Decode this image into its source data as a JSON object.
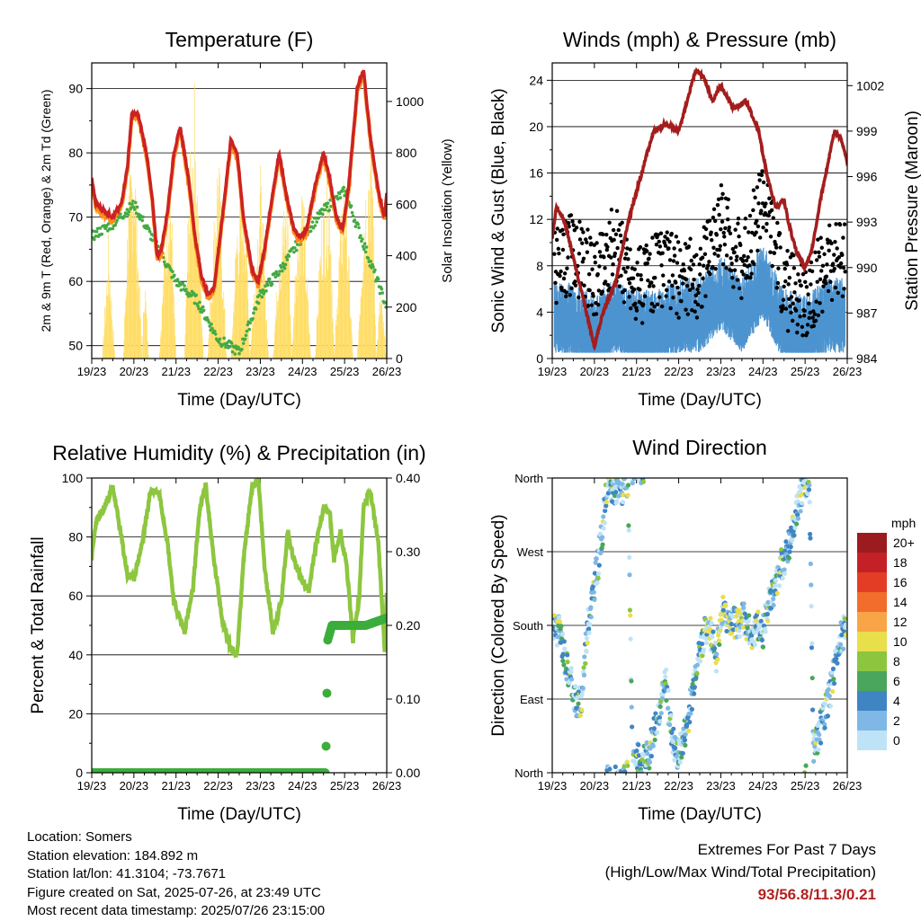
{
  "panels": {
    "temperature": {
      "title": "Temperature (F)",
      "xlabel": "Time (Day/UTC)",
      "ylabel_left": "2m & 9m T (Red, Orange) & 2m Td (Green)",
      "ylabel_right": "Solar Insolation (Yellow)"
    },
    "winds": {
      "title": "Winds (mph) & Pressure (mb)",
      "xlabel": "Time (Day/UTC)",
      "ylabel_left": "Sonic Wind & Gust (Blue, Black)",
      "ylabel_right": "Station Pressure (Maroon)"
    },
    "humidity": {
      "title": "Relative Humidity (%) & Precipitation (in)",
      "xlabel": "Time (Day/UTC)",
      "ylabel_left": "Percent & Total Rainfall"
    },
    "direction": {
      "title": "Wind Direction",
      "xlabel": "Time (Day/UTC)",
      "ylabel_left": "Direction (Colored By Speed)",
      "legend_title": "mph"
    }
  },
  "info": {
    "location": "Location: Somers",
    "elevation": "Station elevation: 184.892 m",
    "latlon": "Station lat/lon: 41.3104; -73.7671",
    "created": "Figure created on Sat, 2025-07-26, at 23:49 UTC",
    "recent": "Most recent data timestamp: 2025/07/26 23:15:00"
  },
  "extremes": {
    "line1": "Extremes For Past 7 Days",
    "line2": "(High/Low/Max Wind/Total Precipitation)",
    "values": "93/56.8/11.3/0.21"
  },
  "chart_data": [
    {
      "type": "line",
      "title": "Temperature (F)",
      "xlabel": "Time (Day/UTC)",
      "ylabel": "2m & 9m T (Red, Orange) & 2m Td (Green)",
      "y2label": "Solar Insolation (Yellow)",
      "x_ticks": [
        "19/23",
        "20/23",
        "21/23",
        "22/23",
        "23/23",
        "24/23",
        "25/23",
        "26/23"
      ],
      "x_range": [
        0,
        7
      ],
      "y_ticks": [
        "50",
        "60",
        "70",
        "80",
        "90"
      ],
      "ylim": [
        48,
        94
      ],
      "y2_ticks": [
        "0",
        "200",
        "400",
        "600",
        "800",
        "1000"
      ],
      "y2lim": [
        0,
        1150
      ],
      "colors": {
        "t2m": "#cc2222",
        "t9m": "#ff8c1a",
        "td": "#44aa44",
        "solar": "#ffdd66"
      },
      "series": [
        {
          "x": [
            0,
            0.1,
            0.3,
            0.5,
            0.7,
            0.85,
            0.95,
            1.1,
            1.3,
            1.45,
            1.55,
            1.65,
            1.8,
            1.95,
            2.1,
            2.3,
            2.45,
            2.6,
            2.75,
            2.9,
            3.1,
            3.3,
            3.45,
            3.6,
            3.8,
            3.95,
            4.1,
            4.3,
            4.45,
            4.6,
            4.8,
            4.95,
            5.1,
            5.3,
            5.5,
            5.65,
            5.8,
            5.95,
            6.1,
            6.3,
            6.45,
            6.6,
            6.8,
            6.95,
            7
          ],
          "values": [
            76,
            72,
            71,
            70,
            72,
            78,
            86,
            86,
            80,
            72,
            64,
            65,
            71,
            80,
            84,
            76,
            67,
            61,
            58,
            59,
            70,
            82,
            80,
            70,
            62,
            60,
            65,
            74,
            80,
            74,
            68,
            67,
            68,
            75,
            80,
            76,
            70,
            68,
            75,
            90,
            93,
            83,
            74,
            70,
            74
          ]
        },
        {
          "x": [
            0,
            0.5,
            1,
            1.5,
            2,
            2.5,
            3,
            3.5,
            4,
            4.5,
            5,
            5.5,
            6,
            6.5,
            7
          ],
          "values": [
            67,
            69,
            72,
            66,
            60,
            57,
            51,
            49,
            58,
            62,
            67,
            71,
            74,
            65,
            56
          ]
        },
        {
          "x": [
            0,
            0.25,
            0.4,
            0.55,
            0.75,
            0.85,
            1.0,
            1.2,
            1.25,
            1.35,
            1.6,
            1.75,
            1.85,
            2.0,
            2.2,
            2.3,
            2.45,
            2.65,
            2.75,
            2.85,
            3.0,
            3.2,
            3.3,
            3.45,
            3.65,
            3.75,
            3.85,
            4.0,
            4.2,
            4.3,
            4.45,
            4.65,
            4.75,
            4.85,
            5.0,
            5.2,
            5.3,
            5.45,
            5.65,
            5.75,
            5.85,
            6.0,
            6.2,
            6.3,
            6.45,
            6.65,
            6.75,
            6.85,
            7.0
          ],
          "values": [
            0,
            0,
            500,
            0,
            0,
            600,
            950,
            0,
            400,
            0,
            0,
            550,
            900,
            0,
            0,
            700,
            1100,
            0,
            0,
            400,
            900,
            0,
            0,
            600,
            700,
            0,
            300,
            800,
            0,
            0,
            500,
            700,
            0,
            500,
            750,
            0,
            0,
            600,
            800,
            0,
            400,
            850,
            0,
            0,
            650,
            1000,
            0,
            300,
            0
          ]
        }
      ]
    },
    {
      "type": "line",
      "title": "Winds (mph) & Pressure (mb)",
      "xlabel": "Time (Day/UTC)",
      "ylabel": "Sonic Wind & Gust (Blue, Black)",
      "y2label": "Station Pressure (Maroon)",
      "x_ticks": [
        "19/23",
        "20/23",
        "21/23",
        "22/23",
        "23/23",
        "24/23",
        "25/23",
        "26/23"
      ],
      "x_range": [
        0,
        7
      ],
      "y_ticks": [
        "0",
        "4",
        "8",
        "12",
        "16",
        "20",
        "24"
      ],
      "ylim": [
        0,
        25.5
      ],
      "y2_ticks": [
        "984",
        "987",
        "990",
        "993",
        "996",
        "999",
        "1002"
      ],
      "y2lim": [
        984,
        1003.5
      ],
      "colors": {
        "gust": "#000000",
        "wind": "#4d94d0",
        "pressure": "#a31d1d"
      },
      "series": [
        {
          "x": [
            0,
            0.5,
            1,
            1.5,
            2,
            2.5,
            3,
            3.5,
            4,
            4.5,
            5,
            5.5,
            6,
            6.5,
            7
          ],
          "values": [
            8,
            9,
            7,
            10,
            6,
            8,
            7,
            7,
            12,
            8,
            14,
            6,
            5,
            8,
            9
          ]
        },
        {
          "x": [
            0,
            0.5,
            1,
            1.5,
            2,
            2.5,
            3,
            3.5,
            4,
            4.5,
            5,
            5.5,
            6,
            6.5,
            7
          ],
          "values": [
            4,
            3.5,
            2.5,
            4,
            3,
            3,
            4,
            4,
            6,
            4,
            7,
            3,
            2.5,
            4,
            4
          ]
        },
        {
          "x": [
            0,
            0.1,
            0.3,
            0.6,
            0.9,
            1.0,
            1.2,
            1.5,
            1.8,
            2.1,
            2.4,
            2.7,
            3.0,
            3.2,
            3.4,
            3.6,
            3.8,
            4.0,
            4.3,
            4.6,
            4.9,
            5.1,
            5.3,
            5.5,
            5.6,
            5.8,
            6.0,
            6.15,
            6.4,
            6.7,
            6.85,
            7
          ],
          "values": [
            992,
            994,
            993,
            989.5,
            986,
            984.8,
            987,
            989,
            993,
            996,
            999,
            999.5,
            999,
            1001,
            1003,
            1002.5,
            1001,
            1002,
            1000.5,
            1001,
            999,
            996,
            994,
            994.5,
            993,
            991,
            990,
            991,
            995,
            999,
            998.5,
            997
          ]
        }
      ]
    },
    {
      "type": "line",
      "title": "Relative Humidity (%) & Precipitation (in)",
      "xlabel": "Time (Day/UTC)",
      "ylabel": "Percent & Total Rainfall",
      "x_ticks": [
        "19/23",
        "20/23",
        "21/23",
        "22/23",
        "23/23",
        "24/23",
        "25/23",
        "26/23"
      ],
      "x_range": [
        0,
        7
      ],
      "y_ticks": [
        "0",
        "20",
        "40",
        "60",
        "80",
        "100"
      ],
      "ylim": [
        0,
        100
      ],
      "y2_ticks": [
        "0.00",
        "0.10",
        "0.20",
        "0.30",
        "0.40"
      ],
      "y2lim": [
        0,
        0.4
      ],
      "colors": {
        "rh": "#8dc63f",
        "precip": "#3bad3b"
      },
      "series": [
        {
          "x": [
            0,
            0.1,
            0.3,
            0.5,
            0.7,
            0.85,
            1.0,
            1.2,
            1.4,
            1.6,
            1.8,
            1.95,
            2.2,
            2.4,
            2.55,
            2.7,
            2.9,
            3.1,
            3.3,
            3.45,
            3.6,
            3.8,
            3.95,
            4.1,
            4.3,
            4.5,
            4.65,
            4.8,
            5.0,
            5.15,
            5.35,
            5.5,
            5.65,
            5.75,
            5.9,
            6.05,
            6.2,
            6.35,
            6.45,
            6.6,
            6.8,
            6.95,
            7
          ],
          "values": [
            73,
            85,
            90,
            97,
            80,
            67,
            66,
            78,
            96,
            95,
            78,
            58,
            48,
            62,
            88,
            98,
            72,
            52,
            42,
            40,
            72,
            97,
            100,
            70,
            48,
            58,
            82,
            72,
            65,
            62,
            80,
            90,
            88,
            72,
            82,
            70,
            45,
            60,
            90,
            96,
            78,
            42,
            62
          ]
        },
        {
          "x": [
            0,
            1,
            2,
            3,
            4,
            5,
            5.55,
            5.6,
            5.7,
            5.8,
            6,
            6.5,
            7
          ],
          "values": [
            0,
            0,
            0,
            0,
            0,
            0,
            0,
            0.18,
            0.2,
            0.2,
            0.2,
            0.2,
            0.21
          ]
        }
      ]
    },
    {
      "type": "scatter",
      "title": "Wind Direction",
      "xlabel": "Time (Day/UTC)",
      "ylabel": "Direction (Colored By Speed)",
      "x_ticks": [
        "19/23",
        "20/23",
        "21/23",
        "22/23",
        "23/23",
        "24/23",
        "25/23",
        "26/23"
      ],
      "x_range": [
        0,
        7
      ],
      "y_ticks": [
        "North",
        "East",
        "South",
        "West",
        "North"
      ],
      "ylim": [
        0,
        360
      ],
      "legend": {
        "title": "mph",
        "labels": [
          "20+",
          "18",
          "16",
          "14",
          "12",
          "10",
          "8",
          "6",
          "4",
          "2",
          "0"
        ],
        "colors": [
          "#9b1b1e",
          "#c42126",
          "#e33d25",
          "#f26d2b",
          "#f8a547",
          "#e9df4b",
          "#8cc63f",
          "#4aa65c",
          "#3f85c3",
          "#7fb8e6",
          "#bfe3f6"
        ]
      },
      "series": [
        {
          "x": [
            0,
            0.1,
            0.2,
            0.3,
            0.4,
            0.5,
            0.6,
            0.7,
            0.8,
            0.9,
            1.0,
            1.1,
            1.2,
            1.3,
            1.4,
            1.5,
            1.6,
            1.7,
            1.8,
            1.9,
            2.0,
            2.1,
            2.2,
            2.3,
            2.4,
            2.5,
            2.6,
            2.7,
            2.8,
            2.9,
            3.0,
            3.1,
            3.2,
            3.3,
            3.4,
            3.5,
            3.6,
            3.7,
            3.8,
            3.9,
            4.0,
            4.1,
            4.2,
            4.3,
            4.4,
            4.5,
            4.6,
            4.7,
            4.8,
            4.9,
            5.0,
            5.1,
            5.2,
            5.3,
            5.4,
            5.5,
            5.6,
            5.7,
            5.8,
            5.9,
            6.0,
            6.1,
            6.2,
            6.3,
            6.4,
            6.5,
            6.6,
            6.7,
            6.8,
            6.9,
            7.0
          ],
          "values": [
            180,
            175,
            170,
            140,
            120,
            100,
            80,
            90,
            160,
            200,
            230,
            260,
            300,
            350,
            345,
            350,
            345,
            348,
            355,
            10,
            20,
            10,
            15,
            25,
            50,
            70,
            90,
            110,
            60,
            30,
            20,
            40,
            60,
            90,
            130,
            150,
            170,
            175,
            165,
            140,
            190,
            200,
            180,
            185,
            180,
            190,
            185,
            170,
            175,
            180,
            170,
            200,
            215,
            230,
            250,
            260,
            275,
            300,
            320,
            340,
            350,
            345,
            25,
            45,
            60,
            80,
            100,
            130,
            160,
            170,
            180
          ]
        }
      ]
    }
  ]
}
